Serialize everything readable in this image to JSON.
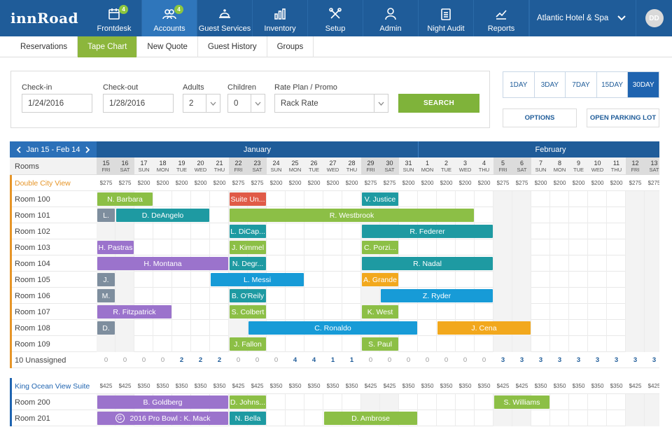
{
  "app": {
    "logo": "innRoad"
  },
  "nav": {
    "items": [
      {
        "label": "Frontdesk",
        "icon": "calendar-icon",
        "badge": "4"
      },
      {
        "label": "Accounts",
        "icon": "users-icon",
        "badge": "4",
        "active": true
      },
      {
        "label": "Guest Services",
        "icon": "bell-icon"
      },
      {
        "label": "Inventory",
        "icon": "bar-chart-icon"
      },
      {
        "label": "Setup",
        "icon": "tools-icon"
      },
      {
        "label": "Admin",
        "icon": "person-icon"
      },
      {
        "label": "Night Audit",
        "icon": "clipboard-icon"
      },
      {
        "label": "Reports",
        "icon": "report-icon"
      }
    ],
    "hotel": "Atlantic Hotel &  Spa",
    "avatar": "DD"
  },
  "subtabs": [
    "Reservations",
    "Tape Chart",
    "New Quote",
    "Guest History",
    "Groups"
  ],
  "search": {
    "checkin_label": "Check-in",
    "checkin_value": "1/24/2016",
    "checkout_label": "Check-out",
    "checkout_value": "1/28/2016",
    "adults_label": "Adults",
    "adults_value": "2",
    "children_label": "Children",
    "children_value": "0",
    "rateplan_label": "Rate Plan / Promo",
    "rateplan_value": "Rack Rate",
    "search_button": "SEARCH"
  },
  "dayrange": [
    {
      "n": "1",
      "u": "DAY"
    },
    {
      "n": "3",
      "u": "DAY"
    },
    {
      "n": "7",
      "u": "DAY"
    },
    {
      "n": "15",
      "u": "DAY"
    },
    {
      "n": "30",
      "u": "DAY",
      "active": true
    }
  ],
  "options_button": "OPTIONS",
  "parking_button": "OPEN PARKING LOT",
  "tape": {
    "range_label": "Jan 15 - Feb 14",
    "months": [
      "January",
      "February"
    ],
    "rooms_header": "Rooms",
    "days": [
      {
        "d": "15",
        "w": "FRI",
        "we": true
      },
      {
        "d": "16",
        "w": "SAT",
        "we": true
      },
      {
        "d": "17",
        "w": "SUN"
      },
      {
        "d": "18",
        "w": "MON"
      },
      {
        "d": "19",
        "w": "TUE"
      },
      {
        "d": "20",
        "w": "WED"
      },
      {
        "d": "21",
        "w": "THU"
      },
      {
        "d": "22",
        "w": "FRI",
        "we": true
      },
      {
        "d": "23",
        "w": "SAT",
        "we": true
      },
      {
        "d": "24",
        "w": "SUN"
      },
      {
        "d": "25",
        "w": "MON"
      },
      {
        "d": "26",
        "w": "TUE"
      },
      {
        "d": "27",
        "w": "WED"
      },
      {
        "d": "28",
        "w": "THU"
      },
      {
        "d": "29",
        "w": "FRI",
        "we": true
      },
      {
        "d": "30",
        "w": "SAT",
        "we": true
      },
      {
        "d": "31",
        "w": "SUN"
      },
      {
        "d": "1",
        "w": "MON"
      },
      {
        "d": "2",
        "w": "TUE"
      },
      {
        "d": "3",
        "w": "WED"
      },
      {
        "d": "4",
        "w": "THU"
      },
      {
        "d": "5",
        "w": "FRI",
        "we": true
      },
      {
        "d": "6",
        "w": "SAT",
        "we": true
      },
      {
        "d": "7",
        "w": "SUN"
      },
      {
        "d": "8",
        "w": "MON"
      },
      {
        "d": "9",
        "w": "TUE"
      },
      {
        "d": "10",
        "w": "WED"
      },
      {
        "d": "11",
        "w": "THU"
      },
      {
        "d": "12",
        "w": "FRI",
        "we": true
      },
      {
        "d": "13",
        "w": "SAT",
        "we": true
      },
      {
        "d": "14",
        "w": "SUN"
      }
    ],
    "groups": [
      {
        "name": "Double City View",
        "accent": "#e69528",
        "rates": [
          "$275",
          "$275",
          "$200",
          "$200",
          "$200",
          "$200",
          "$200",
          "$275",
          "$275",
          "$200",
          "$200",
          "$200",
          "$200",
          "$200",
          "$275",
          "$275",
          "$200",
          "$200",
          "$200",
          "$200",
          "$200",
          "$275",
          "$275",
          "$200",
          "$200",
          "$200",
          "$200",
          "$200",
          "$275",
          "$275",
          "$200"
        ],
        "rooms": [
          {
            "name": "Room 100",
            "res": [
              {
                "s": 0,
                "l": 3,
                "t": "N. Barbara",
                "c": "#8cbf46"
              },
              {
                "s": 7,
                "l": 2,
                "t": "Suite Un...",
                "c": "#e05a47"
              },
              {
                "s": 14,
                "l": 2,
                "t": "V. Justice",
                "c": "#1e9aa2"
              }
            ]
          },
          {
            "name": "Room 101",
            "res": [
              {
                "s": 0,
                "l": 1,
                "t": "L.",
                "c": "#7e8e9e"
              },
              {
                "s": 1,
                "l": 5,
                "t": "D. DeAngelo",
                "c": "#1e9aa2"
              },
              {
                "s": 7,
                "l": 13,
                "t": "R. Westbrook",
                "c": "#8cbf46"
              }
            ]
          },
          {
            "name": "Room 102",
            "res": [
              {
                "s": 7,
                "l": 2,
                "t": "L. DiCap...",
                "c": "#1e9aa2"
              },
              {
                "s": 14,
                "l": 7,
                "t": "R. Federer",
                "c": "#1e9aa2"
              }
            ]
          },
          {
            "name": "Room 103",
            "res": [
              {
                "s": 0,
                "l": 2,
                "t": "H. Pastras",
                "c": "#9b73cc"
              },
              {
                "s": 7,
                "l": 2,
                "t": "J. Kimmel",
                "c": "#8cbf46"
              },
              {
                "s": 14,
                "l": 2,
                "t": "C. Porzi...",
                "c": "#8cbf46"
              }
            ]
          },
          {
            "name": "Room 104",
            "res": [
              {
                "s": 0,
                "l": 7,
                "t": "H. Montana",
                "c": "#9b73cc"
              },
              {
                "s": 7,
                "l": 2,
                "t": "N. Degr...",
                "c": "#1e9aa2"
              },
              {
                "s": 14,
                "l": 7,
                "t": "R. Nadal",
                "c": "#1e9aa2"
              }
            ]
          },
          {
            "name": "Room 105",
            "res": [
              {
                "s": 0,
                "l": 1,
                "t": "J.",
                "c": "#7e8e9e"
              },
              {
                "s": 6,
                "l": 5,
                "t": "L. Messi",
                "c": "#179bd7"
              },
              {
                "s": 14,
                "l": 2,
                "t": "A. Grande",
                "c": "#f2a81d"
              }
            ]
          },
          {
            "name": "Room 106",
            "res": [
              {
                "s": 0,
                "l": 1,
                "t": "M.",
                "c": "#7e8e9e"
              },
              {
                "s": 7,
                "l": 2,
                "t": "B. O'Reily",
                "c": "#1e9aa2"
              },
              {
                "s": 15,
                "l": 6,
                "t": "Z. Ryder",
                "c": "#179bd7"
              }
            ]
          },
          {
            "name": "Room 107",
            "res": [
              {
                "s": 0,
                "l": 4,
                "t": "R. Fitzpatrick",
                "c": "#9b73cc"
              },
              {
                "s": 7,
                "l": 2,
                "t": "S. Colbert",
                "c": "#8cbf46"
              },
              {
                "s": 14,
                "l": 2,
                "t": "K. West",
                "c": "#8cbf46"
              }
            ]
          },
          {
            "name": "Room 108",
            "res": [
              {
                "s": 0,
                "l": 1,
                "t": "D.",
                "c": "#7e8e9e"
              },
              {
                "s": 8,
                "l": 9,
                "t": "C. Ronaldo",
                "c": "#179bd7"
              },
              {
                "s": 18,
                "l": 5,
                "t": "J. Cena",
                "c": "#f2a81d"
              }
            ]
          },
          {
            "name": "Room 109",
            "res": [
              {
                "s": 7,
                "l": 2,
                "t": "J. Fallon",
                "c": "#8cbf46"
              },
              {
                "s": 14,
                "l": 2,
                "t": "S. Paul",
                "c": "#8cbf46"
              }
            ]
          }
        ],
        "unassigned_label": "10 Unassigned",
        "unassigned": [
          "0",
          "0",
          "0",
          "0",
          "2",
          "2",
          "2",
          "0",
          "0",
          "0",
          "4",
          "4",
          "1",
          "1",
          "0",
          "0",
          "0",
          "0",
          "0",
          "0",
          "0",
          "3",
          "3",
          "3",
          "3",
          "3",
          "3",
          "3",
          "3",
          "3",
          "3"
        ]
      },
      {
        "name": "King Ocean View Suite",
        "accent": "#1f64b0",
        "rates": [
          "$425",
          "$425",
          "$350",
          "$350",
          "$350",
          "$350",
          "$350",
          "$425",
          "$425",
          "$350",
          "$350",
          "$350",
          "$350",
          "$350",
          "$425",
          "$425",
          "$350",
          "$350",
          "$350",
          "$350",
          "$350",
          "$425",
          "$425",
          "$350",
          "$350",
          "$350",
          "$350",
          "$350",
          "$425",
          "$425",
          "$350"
        ],
        "rooms": [
          {
            "name": "Room 200",
            "res": [
              {
                "s": 0,
                "l": 7,
                "t": "B. Goldberg",
                "c": "#9b73cc"
              },
              {
                "s": 7,
                "l": 2,
                "t": "D. Johns...",
                "c": "#8cbf46"
              },
              {
                "s": 21,
                "l": 3,
                "t": "S. Williams",
                "c": "#8cbf46"
              }
            ]
          },
          {
            "name": "Room 201",
            "res": [
              {
                "s": 0,
                "l": 7,
                "t": "2016 Pro Bowl : K. Mack",
                "c": "#9b73cc",
                "group": "G"
              },
              {
                "s": 7,
                "l": 2,
                "t": "N. Bella",
                "c": "#1e9aa2"
              },
              {
                "s": 12,
                "l": 5,
                "t": "D. Ambrose",
                "c": "#8cbf46"
              }
            ]
          }
        ]
      }
    ]
  }
}
